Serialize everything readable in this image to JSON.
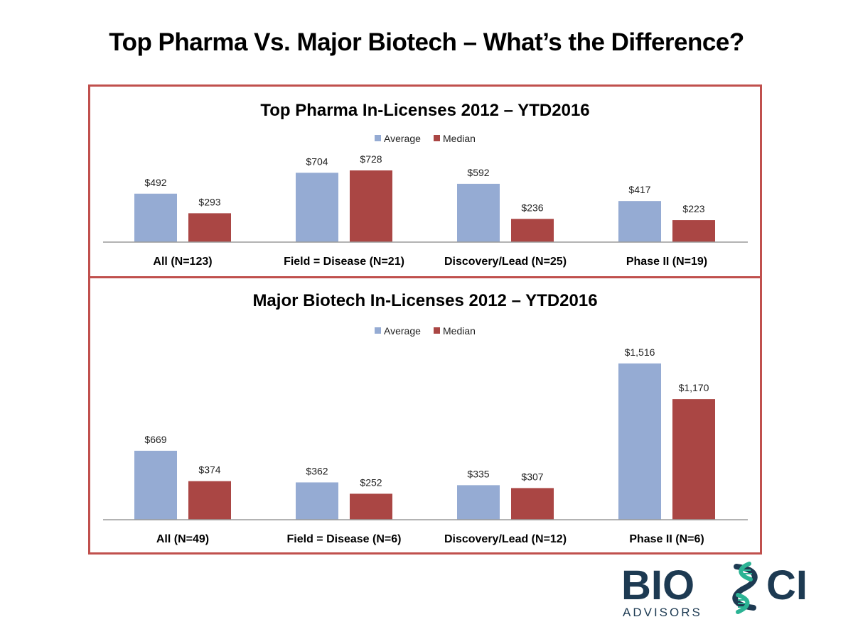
{
  "slide": {
    "title": "Top Pharma  Vs. Major Biotech – What’s the Difference?"
  },
  "colors": {
    "average": "#95abd3",
    "median": "#aa4644",
    "frame": "#c0504d",
    "axis": "#9a9a9a",
    "logo_navy": "#1d3a52",
    "logo_teal": "#2bb394"
  },
  "logo": {
    "brand_left": "BIO",
    "brand_right": "CI",
    "tagline": "ADVISORS"
  },
  "chart_data": [
    {
      "type": "bar",
      "title": "Top Pharma In-Licenses 2012 – YTD2016",
      "xlabel": "",
      "ylabel": "",
      "legend_position": "top-center",
      "grid": false,
      "categories": [
        "All (N=123)",
        "Field = Disease (N=21)",
        "Discovery/Lead (N=25)",
        "Phase II (N=19)"
      ],
      "series": [
        {
          "name": "Average",
          "values": [
            492,
            704,
            592,
            417
          ],
          "labels": [
            "$492",
            "$704",
            "$592",
            "$417"
          ]
        },
        {
          "name": "Median",
          "values": [
            293,
            728,
            236,
            223
          ],
          "labels": [
            "$293",
            "$728",
            "$236",
            "$223"
          ]
        }
      ]
    },
    {
      "type": "bar",
      "title": "Major Biotech In-Licenses 2012 – YTD2016",
      "xlabel": "",
      "ylabel": "",
      "legend_position": "top-center",
      "grid": false,
      "categories": [
        "All (N=49)",
        "Field = Disease (N=6)",
        "Discovery/Lead (N=12)",
        "Phase II (N=6)"
      ],
      "series": [
        {
          "name": "Average",
          "values": [
            669,
            362,
            335,
            1516
          ],
          "labels": [
            "$669",
            "$362",
            "$335",
            "$1,516"
          ]
        },
        {
          "name": "Median",
          "values": [
            374,
            252,
            307,
            1170
          ],
          "labels": [
            "$374",
            "$252",
            "$307",
            "$1,170"
          ]
        }
      ]
    }
  ]
}
